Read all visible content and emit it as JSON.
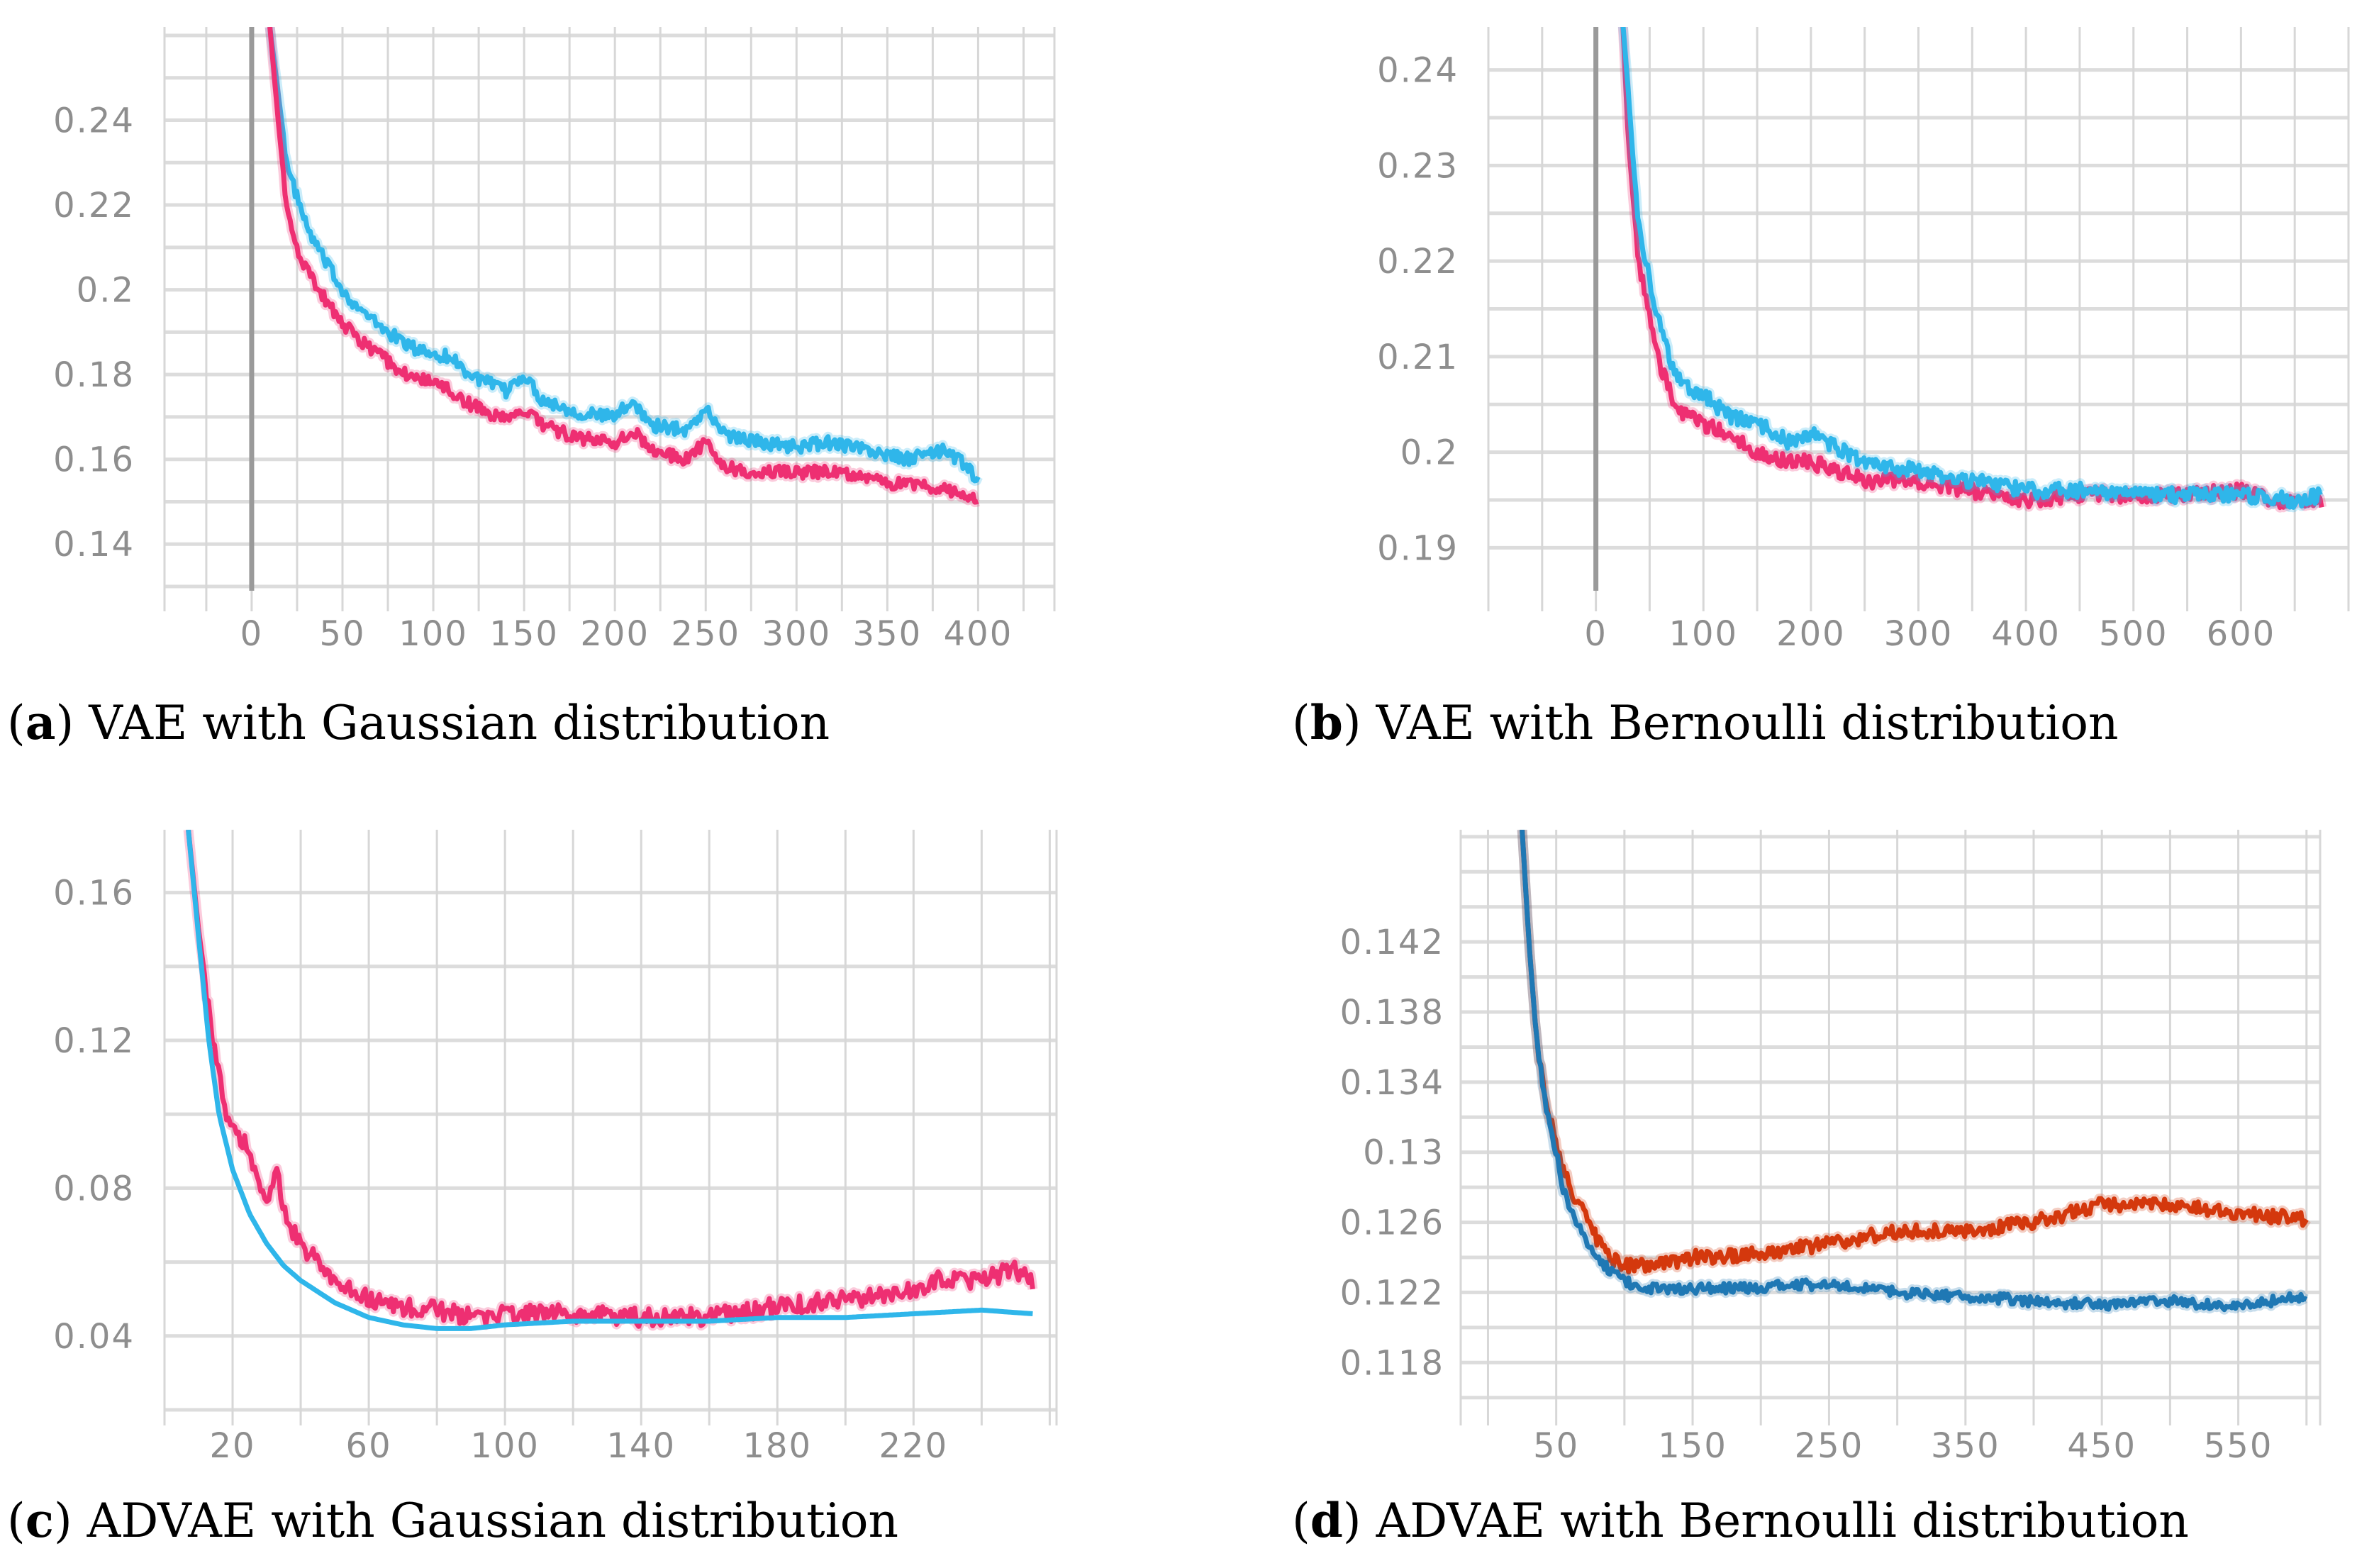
{
  "colors": {
    "pink": "#ee2f72",
    "cyan": "#2fb6ea",
    "red": "#d4380d",
    "blue": "#1f78b4"
  },
  "chart_data": [
    {
      "id": "a",
      "type": "line",
      "title": "VAE with Gaussian distribution",
      "label": "a",
      "xlim": [
        -48,
        442
      ],
      "ylim": [
        0.129,
        0.262
      ],
      "xticks": [
        0,
        50,
        100,
        150,
        200,
        250,
        300,
        350,
        400
      ],
      "xtick_labels": [
        "0",
        "50",
        "100",
        "150",
        "200",
        "250",
        "300",
        "350",
        "400"
      ],
      "yticks": [
        0.14,
        0.16,
        0.18,
        0.2,
        0.22,
        0.24
      ],
      "ytick_labels": [
        "0.14",
        "0.16",
        "0.18",
        "0.2",
        "0.22",
        "0.24"
      ],
      "zero_line": true,
      "series": [
        {
          "name": "cyan",
          "color": "#2fb6ea",
          "noise": 0.0015,
          "x": [
            10,
            15,
            20,
            25,
            30,
            40,
            50,
            60,
            75,
            90,
            100,
            110,
            120,
            130,
            140,
            150,
            160,
            180,
            200,
            210,
            220,
            240,
            250,
            260,
            280,
            300,
            320,
            340,
            360,
            380,
            390,
            400
          ],
          "y": [
            0.262,
            0.245,
            0.228,
            0.222,
            0.215,
            0.207,
            0.2,
            0.195,
            0.19,
            0.186,
            0.185,
            0.184,
            0.18,
            0.178,
            0.176,
            0.18,
            0.174,
            0.171,
            0.17,
            0.174,
            0.168,
            0.167,
            0.172,
            0.166,
            0.164,
            0.163,
            0.164,
            0.162,
            0.16,
            0.162,
            0.16,
            0.155
          ]
        },
        {
          "name": "pink",
          "color": "#ee2f72",
          "noise": 0.0015,
          "x": [
            10,
            15,
            20,
            25,
            30,
            40,
            50,
            60,
            75,
            90,
            100,
            110,
            120,
            130,
            140,
            150,
            160,
            180,
            200,
            210,
            220,
            240,
            250,
            260,
            280,
            300,
            320,
            340,
            360,
            380,
            390,
            400
          ],
          "y": [
            0.262,
            0.238,
            0.217,
            0.21,
            0.205,
            0.198,
            0.192,
            0.188,
            0.183,
            0.179,
            0.178,
            0.176,
            0.173,
            0.171,
            0.17,
            0.172,
            0.168,
            0.165,
            0.164,
            0.167,
            0.162,
            0.16,
            0.164,
            0.158,
            0.157,
            0.157,
            0.157,
            0.155,
            0.154,
            0.153,
            0.152,
            0.15
          ]
        }
      ]
    },
    {
      "id": "b",
      "type": "line",
      "title": "VAE with Bernoulli distribution",
      "label": "b",
      "xlim": [
        -100,
        700
      ],
      "ylim": [
        0.1855,
        0.2445
      ],
      "xticks": [
        0,
        100,
        200,
        300,
        400,
        500,
        600
      ],
      "xtick_labels": [
        "0",
        "100",
        "200",
        "300",
        "400",
        "500",
        "600"
      ],
      "yticks": [
        0.19,
        0.2,
        0.21,
        0.22,
        0.23,
        0.24
      ],
      "ytick_labels": [
        "0.19",
        "0.2",
        "0.21",
        "0.22",
        "0.23",
        "0.24"
      ],
      "zero_line": true,
      "series": [
        {
          "name": "pink",
          "color": "#ee2f72",
          "noise": 0.0008,
          "x": [
            25,
            30,
            35,
            40,
            50,
            60,
            70,
            80,
            100,
            120,
            150,
            180,
            200,
            250,
            300,
            350,
            400,
            450,
            500,
            550,
            600,
            650,
            675
          ],
          "y": [
            0.245,
            0.233,
            0.226,
            0.22,
            0.214,
            0.209,
            0.206,
            0.204,
            0.203,
            0.202,
            0.2,
            0.199,
            0.199,
            0.197,
            0.197,
            0.196,
            0.195,
            0.1955,
            0.1955,
            0.1955,
            0.196,
            0.1945,
            0.195
          ]
        },
        {
          "name": "cyan",
          "color": "#2fb6ea",
          "noise": 0.0008,
          "x": [
            25,
            30,
            35,
            40,
            50,
            60,
            70,
            80,
            100,
            120,
            150,
            180,
            200,
            250,
            300,
            350,
            400,
            450,
            500,
            550,
            600,
            650,
            675
          ],
          "y": [
            0.245,
            0.238,
            0.23,
            0.224,
            0.218,
            0.213,
            0.209,
            0.207,
            0.206,
            0.204,
            0.203,
            0.201,
            0.202,
            0.199,
            0.198,
            0.197,
            0.196,
            0.196,
            0.1955,
            0.1955,
            0.1955,
            0.195,
            0.1955
          ]
        }
      ]
    },
    {
      "id": "c",
      "type": "line",
      "title": "ADVAE with Gaussian distribution",
      "label": "c",
      "xlim": [
        0,
        262
      ],
      "ylim": [
        0.02,
        0.177
      ],
      "xticks": [
        20,
        60,
        100,
        140,
        180,
        220
      ],
      "xtick_labels": [
        "20",
        "60",
        "100",
        "140",
        "180",
        "220"
      ],
      "yticks": [
        0.04,
        0.08,
        0.12,
        0.16
      ],
      "ytick_labels": [
        "0.04",
        "0.08",
        "0.12",
        "0.16"
      ],
      "zero_line": false,
      "series": [
        {
          "name": "pink",
          "color": "#ee2f72",
          "noise": 0.0025,
          "x": [
            7,
            10,
            15,
            18,
            20,
            25,
            28,
            30,
            33,
            35,
            38,
            40,
            45,
            50,
            60,
            70,
            80,
            90,
            100,
            120,
            140,
            160,
            180,
            200,
            220,
            230,
            240,
            250,
            255
          ],
          "y": [
            0.177,
            0.15,
            0.115,
            0.1,
            0.096,
            0.09,
            0.08,
            0.075,
            0.085,
            0.073,
            0.068,
            0.065,
            0.06,
            0.054,
            0.05,
            0.048,
            0.047,
            0.045,
            0.046,
            0.046,
            0.045,
            0.045,
            0.048,
            0.05,
            0.052,
            0.056,
            0.055,
            0.058,
            0.054
          ]
        },
        {
          "name": "cyan",
          "color": "#2fb6ea",
          "noise": 0,
          "x": [
            7,
            10,
            13,
            16,
            20,
            25,
            30,
            35,
            40,
            50,
            60,
            70,
            80,
            90,
            100,
            120,
            140,
            160,
            180,
            200,
            220,
            240,
            255
          ],
          "y": [
            0.177,
            0.148,
            0.12,
            0.1,
            0.085,
            0.073,
            0.065,
            0.059,
            0.055,
            0.049,
            0.045,
            0.043,
            0.042,
            0.042,
            0.043,
            0.044,
            0.044,
            0.044,
            0.045,
            0.045,
            0.046,
            0.047,
            0.046
          ]
        }
      ]
    },
    {
      "id": "d",
      "type": "line",
      "title": "ADVAE with Bernoulli distribution",
      "label": "d",
      "xlim": [
        -20,
        610
      ],
      "ylim": [
        0.1153,
        0.1484
      ],
      "xticks": [
        50,
        150,
        250,
        350,
        450,
        550
      ],
      "xtick_labels": [
        "50",
        "150",
        "250",
        "350",
        "450",
        "550"
      ],
      "yticks": [
        0.118,
        0.122,
        0.126,
        0.13,
        0.134,
        0.138,
        0.142
      ],
      "ytick_labels": [
        "0.118",
        "0.122",
        "0.126",
        "0.13",
        "0.134",
        "0.138",
        "0.142"
      ],
      "zero_line": false,
      "series": [
        {
          "name": "red",
          "color": "#d4380d",
          "noise": 0.0004,
          "x": [
            25,
            30,
            35,
            40,
            45,
            50,
            55,
            60,
            70,
            80,
            90,
            100,
            120,
            150,
            200,
            250,
            300,
            350,
            400,
            450,
            500,
            550,
            600
          ],
          "y": [
            0.1484,
            0.142,
            0.137,
            0.134,
            0.132,
            0.1305,
            0.129,
            0.128,
            0.1265,
            0.125,
            0.124,
            0.1235,
            0.1235,
            0.124,
            0.1242,
            0.1248,
            0.1255,
            0.1255,
            0.126,
            0.127,
            0.127,
            0.1265,
            0.1262
          ]
        },
        {
          "name": "blue",
          "color": "#1f78b4",
          "noise": 0.0003,
          "x": [
            25,
            30,
            35,
            40,
            45,
            50,
            55,
            60,
            70,
            80,
            90,
            100,
            120,
            150,
            200,
            250,
            300,
            350,
            400,
            450,
            500,
            550,
            600
          ],
          "y": [
            0.1484,
            0.142,
            0.137,
            0.134,
            0.1315,
            0.13,
            0.128,
            0.1268,
            0.1252,
            0.124,
            0.1232,
            0.1226,
            0.1222,
            0.1222,
            0.1223,
            0.1225,
            0.122,
            0.1218,
            0.1215,
            0.1213,
            0.1215,
            0.1212,
            0.1218
          ]
        }
      ]
    }
  ]
}
